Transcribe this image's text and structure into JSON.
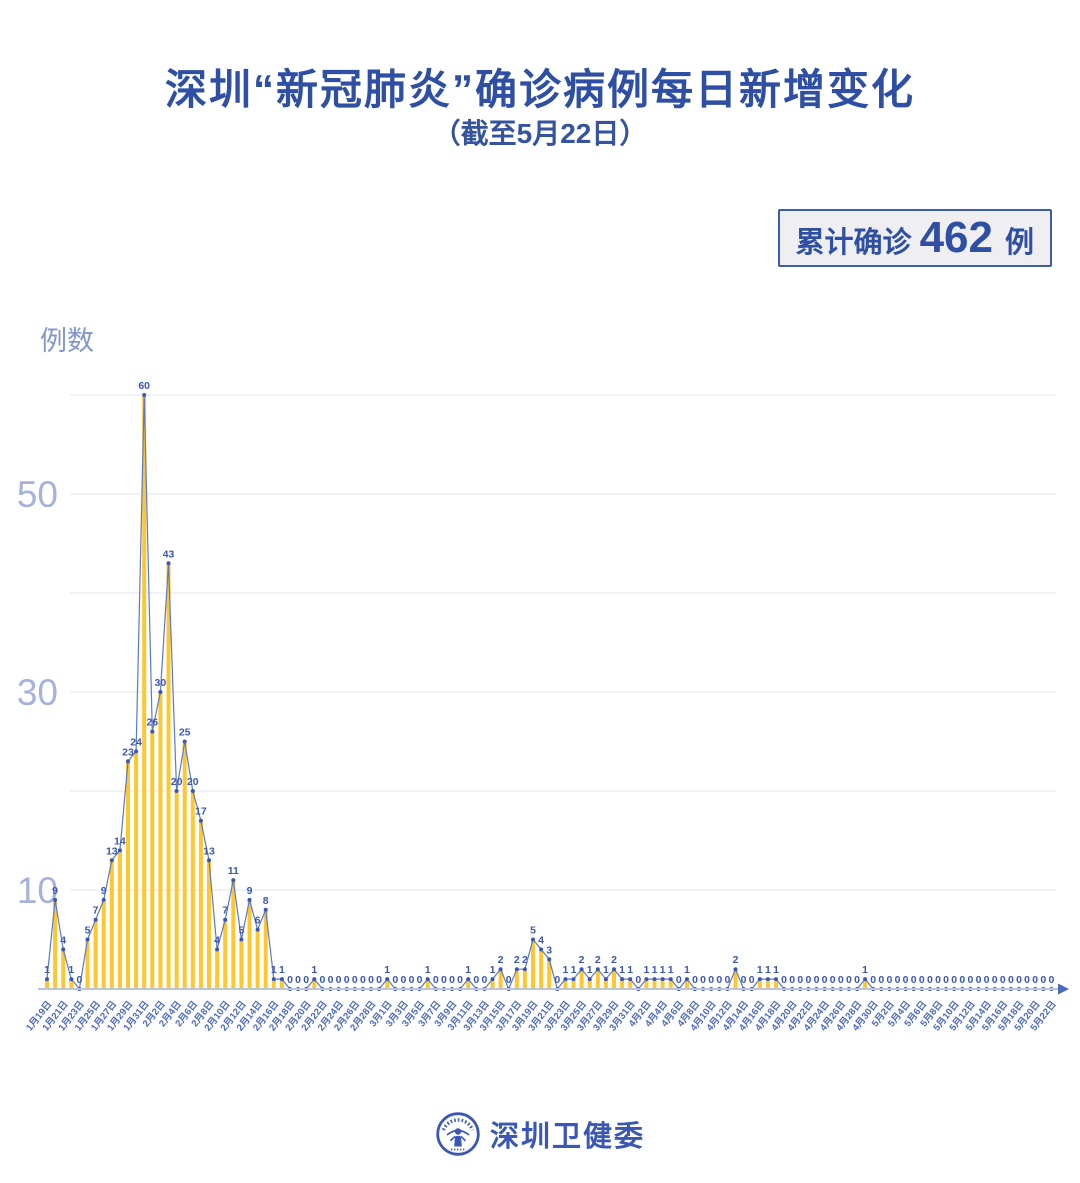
{
  "title": "深圳“新冠肺炎”确诊病例每日新增变化",
  "subtitle": "（截至5月22日）",
  "badge": {
    "prefix": "累计确诊",
    "count": "462",
    "suffix": "例"
  },
  "footer": {
    "org": "深圳卫健委"
  },
  "colors": {
    "title_blue": "#2e4fa3",
    "bar_yellow": "#ffc72e",
    "line_blue": "#5b79c9",
    "point_blue": "#3b57b2",
    "date_label_blue": "#4a68be",
    "ytick_periwinkle": "#a6b2da",
    "ylabel_blue": "#8395cd",
    "grid_gray": "#e9eaf1",
    "axis_gray": "#bac4da",
    "badge_bg": "#efeff2",
    "badge_border": "#3e5cae"
  },
  "chart_data": {
    "type": "bar",
    "overlay": "line",
    "title": "深圳“新冠肺炎”确诊病例每日新增变化",
    "subtitle": "（截至5月22日）",
    "ylabel": "例数",
    "ylim": [
      0,
      62
    ],
    "ytick_labels_shown": [
      10,
      30,
      50
    ],
    "gridlines": [
      10,
      20,
      30,
      40,
      50,
      60
    ],
    "point_labels": "every point labeled with its value, zeros included",
    "x_frequency": "daily from 1月19日 to 5月22日 (125 points), axis labeled every 2nd day",
    "tick_every": 2,
    "x_tick_labels": [
      "1月19日",
      "1月21日",
      "1月23日",
      "1月25日",
      "1月27日",
      "1月29日",
      "1月31日",
      "2月2日",
      "2月4日",
      "2月6日",
      "2月8日",
      "2月10日",
      "2月12日",
      "2月14日",
      "2月16日",
      "2月18日",
      "2月20日",
      "2月22日",
      "2月24日",
      "2月26日",
      "2月28日",
      "3月1日",
      "3月3日",
      "3月5日",
      "3月7日",
      "3月9日",
      "3月11日",
      "3月13日",
      "3月15日",
      "3月17日",
      "3月19日",
      "3月21日",
      "3月23日",
      "3月25日",
      "3月27日",
      "3月29日",
      "3月31日",
      "4月2日",
      "4月4日",
      "4月6日",
      "4月8日",
      "4月10日",
      "4月12日",
      "4月14日",
      "4月16日",
      "4月18日",
      "4月20日",
      "4月22日",
      "4月24日",
      "4月26日",
      "4月28日",
      "4月30日",
      "5月2日",
      "5月4日",
      "5月6日",
      "5月8日",
      "5月10日",
      "5月12日",
      "5月14日",
      "5月16日",
      "5月18日",
      "5月20日",
      "5月22日"
    ],
    "values": [
      1,
      9,
      4,
      1,
      0,
      5,
      7,
      9,
      13,
      14,
      23,
      24,
      60,
      26,
      30,
      43,
      20,
      25,
      20,
      17,
      13,
      4,
      7,
      11,
      5,
      9,
      6,
      8,
      1,
      1,
      0,
      0,
      0,
      1,
      0,
      0,
      0,
      0,
      0,
      0,
      0,
      0,
      1,
      0,
      0,
      0,
      0,
      1,
      0,
      0,
      0,
      0,
      1,
      0,
      0,
      1,
      2,
      0,
      2,
      2,
      5,
      4,
      3,
      0,
      1,
      1,
      2,
      1,
      2,
      1,
      2,
      1,
      1,
      0,
      1,
      1,
      1,
      1,
      0,
      1,
      0,
      0,
      0,
      0,
      0,
      2,
      0,
      0,
      1,
      1,
      1,
      0,
      0,
      0,
      0,
      0,
      0,
      0,
      0,
      0,
      0,
      1,
      0,
      0,
      0,
      0,
      0,
      0,
      0,
      0,
      0,
      0,
      0,
      0,
      0,
      0,
      0,
      0,
      0,
      0,
      0,
      0,
      0,
      0,
      0
    ],
    "total": 462
  }
}
